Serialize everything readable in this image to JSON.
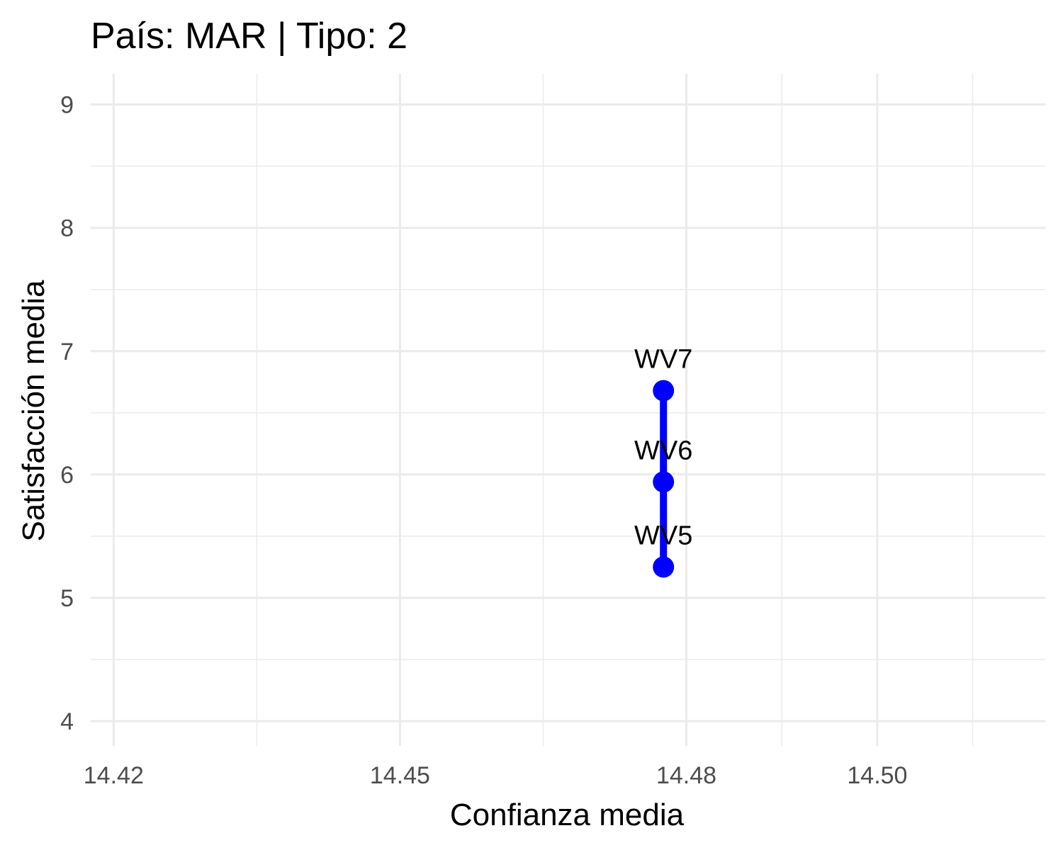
{
  "chart_data": {
    "type": "line",
    "title": "País: MAR | Tipo: 2",
    "xlabel": "Confianza media",
    "ylabel": "Satisfacción media",
    "xlim": [
      14.4176,
      14.5176
    ],
    "ylim": [
      3.8,
      9.25
    ],
    "x_ticks": [
      {
        "value": 14.42,
        "label": "14.42"
      },
      {
        "value": 14.45,
        "label": "14.45"
      },
      {
        "value": 14.48,
        "label": "14.48"
      },
      {
        "value": 14.5,
        "label": "14.50"
      }
    ],
    "x_minor_ticks": [
      14.435,
      14.465,
      14.49,
      14.51
    ],
    "y_ticks": [
      {
        "value": 4,
        "label": "4"
      },
      {
        "value": 5,
        "label": "5"
      },
      {
        "value": 6,
        "label": "6"
      },
      {
        "value": 7,
        "label": "7"
      },
      {
        "value": 8,
        "label": "8"
      },
      {
        "value": 9,
        "label": "9"
      }
    ],
    "y_minor_ticks": [
      4.5,
      5.5,
      6.5,
      7.5,
      8.5
    ],
    "grid": true,
    "series": [
      {
        "color": "#0000ff",
        "points": [
          {
            "x": 14.4776,
            "y": 5.25,
            "label": "WV5"
          },
          {
            "x": 14.4776,
            "y": 5.94,
            "label": "WV6"
          },
          {
            "x": 14.4776,
            "y": 6.68,
            "label": "WV7"
          }
        ]
      }
    ]
  }
}
